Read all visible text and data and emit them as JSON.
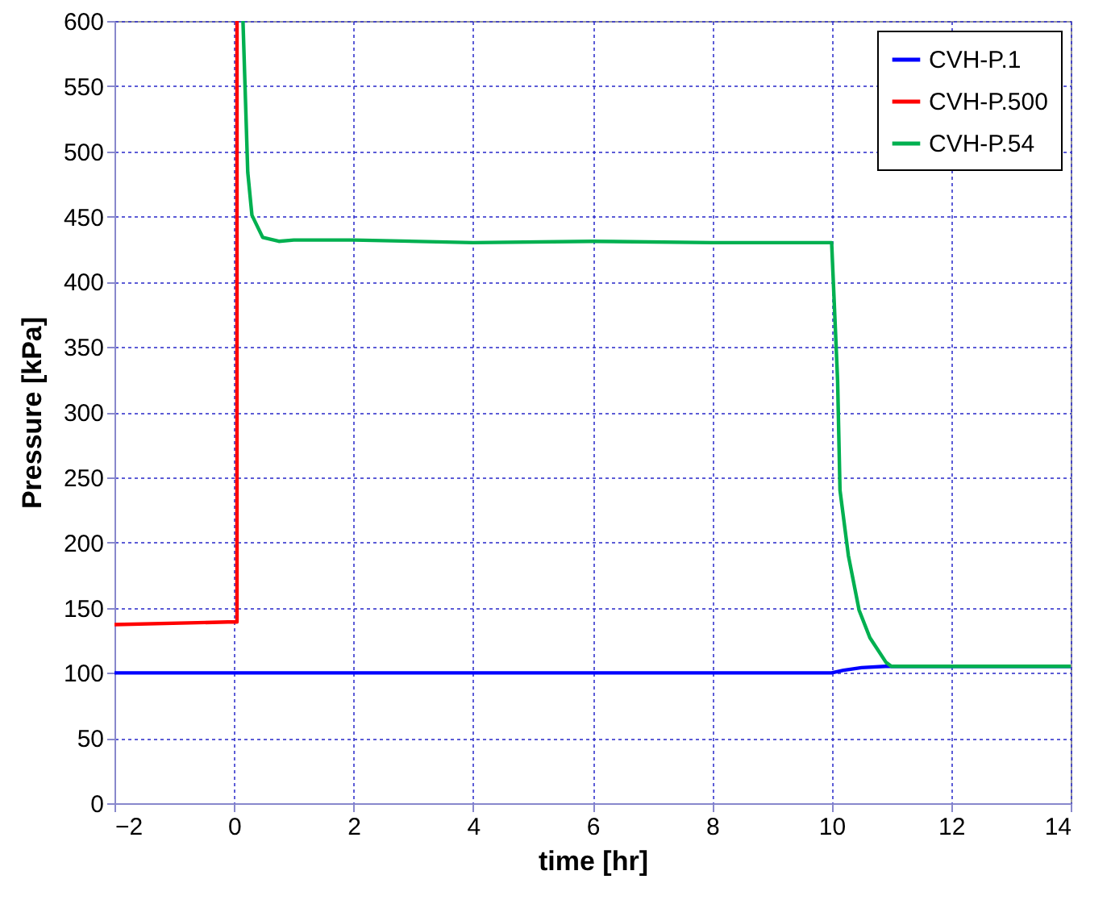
{
  "chart_data": {
    "type": "line",
    "xlabel": "time [hr]",
    "ylabel": "Pressure [kPa]",
    "xlim": [
      -2,
      14
    ],
    "ylim": [
      0,
      600
    ],
    "xticks": [
      -2,
      0,
      2,
      4,
      6,
      8,
      10,
      12,
      14
    ],
    "yticks": [
      0,
      50,
      100,
      150,
      200,
      250,
      300,
      350,
      400,
      450,
      500,
      550,
      600
    ],
    "grid": true,
    "legend": "top right",
    "marker": "none",
    "line_style": "solid",
    "series": [
      {
        "name": "CVH-P.1",
        "color": "#0000ff",
        "x": [
          -2,
          0,
          2,
          4,
          6,
          8,
          10,
          10.2,
          10.5,
          10.9,
          12,
          14
        ],
        "values": [
          100,
          100,
          100,
          100,
          100,
          100,
          100,
          102,
          104,
          105,
          105,
          105
        ]
      },
      {
        "name": "CVH-P.500",
        "color": "#ff0000",
        "x": [
          -2,
          -0.1,
          0.05,
          0.05
        ],
        "values": [
          137,
          139,
          139,
          600
        ]
      },
      {
        "name": "CVH-P.54",
        "color": "#00b050",
        "x": [
          0.15,
          0.23,
          0.3,
          0.48,
          0.75,
          1,
          2,
          4,
          6,
          8,
          10,
          10.1,
          10.14,
          10.28,
          10.46,
          10.64,
          10.91,
          11,
          12,
          14
        ],
        "values": [
          600,
          484,
          451,
          434,
          431,
          432,
          432,
          430,
          431,
          430,
          430,
          324,
          240,
          190,
          148,
          127,
          108,
          105,
          105,
          105
        ]
      }
    ]
  }
}
